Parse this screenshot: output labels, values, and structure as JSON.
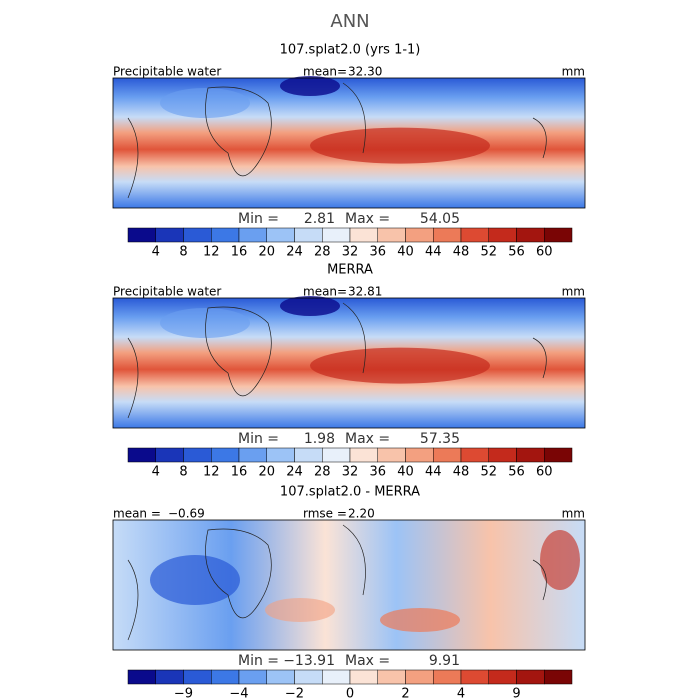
{
  "title": "ANN",
  "panels": [
    {
      "title": "107.splat2.0 (yrs 1-1)",
      "left_label": "Precipitable water",
      "left_value": null,
      "center_label": "mean=",
      "center_value": "32.30",
      "units": "mm",
      "min_label": "Min =",
      "min": "2.81",
      "max_label": "Max =",
      "max": "54.05",
      "colorbar": {
        "colors": [
          "#0a0a8c",
          "#1a35b8",
          "#2a5ad6",
          "#3c78e6",
          "#6a9ff0",
          "#9cc3f6",
          "#c6dcf7",
          "#e8f0fa",
          "#fbe3d6",
          "#f8c3aa",
          "#f3a080",
          "#ec7a58",
          "#dd4a32",
          "#c42a1c",
          "#a3150f",
          "#7a0505"
        ],
        "ticks": [
          "4",
          "8",
          "12",
          "16",
          "20",
          "24",
          "28",
          "32",
          "36",
          "40",
          "44",
          "48",
          "52",
          "56",
          "60"
        ]
      }
    },
    {
      "title": "MERRA",
      "left_label": "Precipitable water",
      "left_value": null,
      "center_label": "mean=",
      "center_value": "32.81",
      "units": "mm",
      "min_label": "Min =",
      "min": "1.98",
      "max_label": "Max =",
      "max": "57.35",
      "colorbar": {
        "colors": [
          "#0a0a8c",
          "#1a35b8",
          "#2a5ad6",
          "#3c78e6",
          "#6a9ff0",
          "#9cc3f6",
          "#c6dcf7",
          "#e8f0fa",
          "#fbe3d6",
          "#f8c3aa",
          "#f3a080",
          "#ec7a58",
          "#dd4a32",
          "#c42a1c",
          "#a3150f",
          "#7a0505"
        ],
        "ticks": [
          "4",
          "8",
          "12",
          "16",
          "20",
          "24",
          "28",
          "32",
          "36",
          "40",
          "44",
          "48",
          "52",
          "56",
          "60"
        ]
      }
    },
    {
      "title": "107.splat2.0 - MERRA",
      "left_label": "mean =",
      "left_value": "−0.69",
      "center_label": "rmse =",
      "center_value": "2.20",
      "units": "mm",
      "min_label": "Min =",
      "min": "−13.91",
      "max_label": "Max =",
      "max": "9.91",
      "colorbar": {
        "colors": [
          "#0a0a8c",
          "#1a35b8",
          "#2a5ad6",
          "#3c78e6",
          "#6a9ff0",
          "#9cc3f6",
          "#c6dcf7",
          "#e8f0fa",
          "#fbe3d6",
          "#f8c3aa",
          "#f3a080",
          "#ec7a58",
          "#dd4a32",
          "#c42a1c",
          "#a3150f",
          "#7a0505"
        ],
        "ticks": [
          "−9",
          "−4",
          "−2",
          "0",
          "2",
          "4",
          "9"
        ]
      }
    }
  ]
}
